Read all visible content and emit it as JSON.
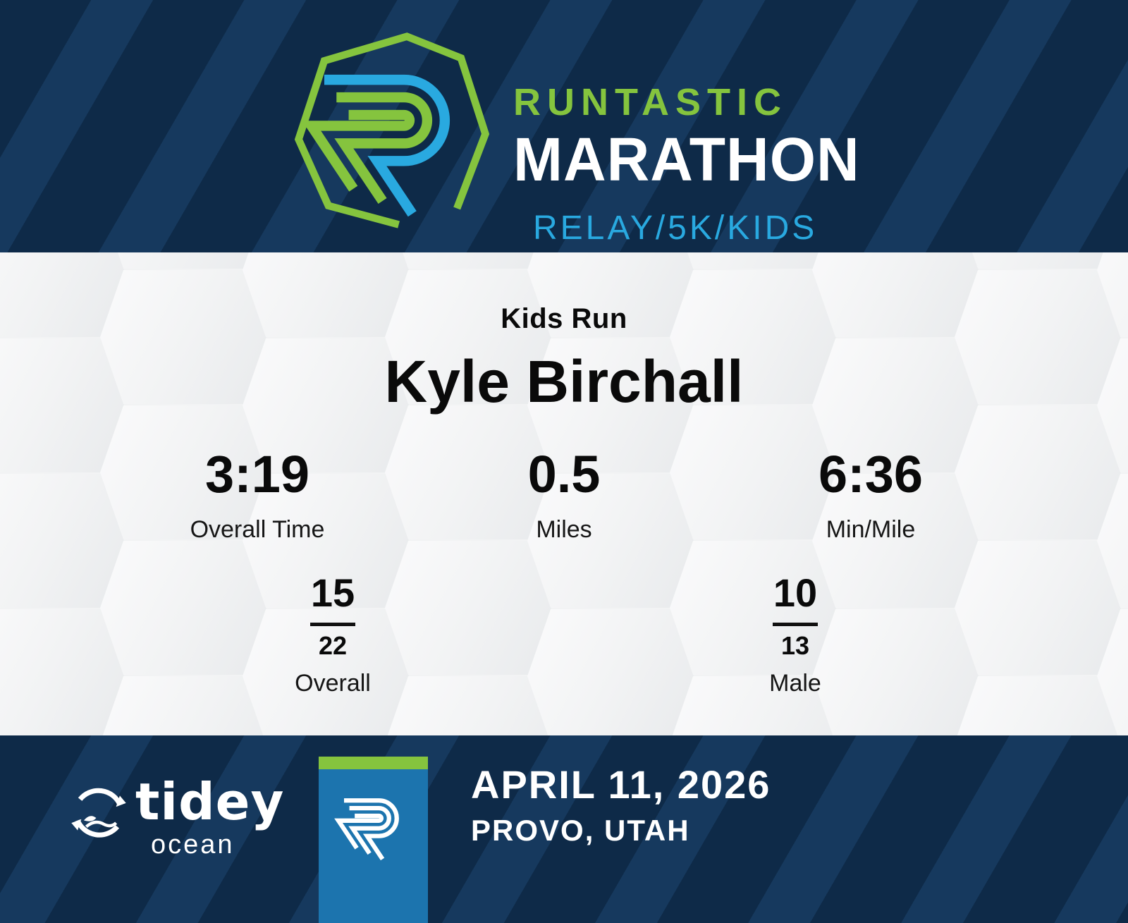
{
  "header": {
    "title_line1": "RUNTASTIC",
    "title_line2": "MARATHON",
    "subtitle": "RELAY/5K/KIDS"
  },
  "result": {
    "race_label": "Kids Run",
    "runner_name": "Kyle Birchall",
    "stats": [
      {
        "value": "3:19",
        "label": "Overall Time"
      },
      {
        "value": "0.5",
        "label": "Miles"
      },
      {
        "value": "6:36",
        "label": "Min/Mile"
      }
    ],
    "rankings": [
      {
        "place": "15",
        "total": "22",
        "label": "Overall"
      },
      {
        "place": "10",
        "total": "13",
        "label": "Male"
      }
    ]
  },
  "footer": {
    "sponsor_name": "tidey",
    "sponsor_sub": "ocean",
    "date": "APRIL 11, 2026",
    "location": "PROVO, UTAH"
  },
  "colors": {
    "navy": "#0e2a48",
    "navy_stripe": "#16395e",
    "green": "#85c43e",
    "blue": "#29a9e0",
    "box_blue": "#1c74ae"
  }
}
